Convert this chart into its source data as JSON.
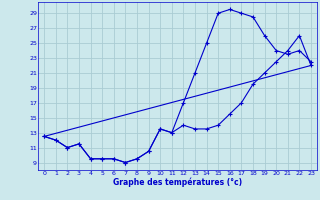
{
  "xlabel": "Graphe des températures (°c)",
  "bg_color": "#cce8ec",
  "grid_color": "#aaccd4",
  "line_color": "#0000cc",
  "xlim": [
    -0.5,
    23.5
  ],
  "ylim": [
    8.0,
    30.5
  ],
  "xticks": [
    0,
    1,
    2,
    3,
    4,
    5,
    6,
    7,
    8,
    9,
    10,
    11,
    12,
    13,
    14,
    15,
    16,
    17,
    18,
    19,
    20,
    21,
    22,
    23
  ],
  "yticks": [
    9,
    11,
    13,
    15,
    17,
    19,
    21,
    23,
    25,
    27,
    29
  ],
  "line1_x": [
    0,
    1,
    2,
    3,
    4,
    5,
    6,
    7,
    8,
    9,
    10,
    11,
    12,
    13,
    14,
    15,
    16,
    17,
    18,
    19,
    20,
    21,
    22,
    23
  ],
  "line1_y": [
    12.5,
    12.0,
    11.0,
    11.5,
    9.5,
    9.5,
    9.5,
    9.0,
    9.5,
    10.5,
    13.5,
    13.0,
    17.0,
    21.0,
    25.0,
    29.0,
    29.5,
    29.0,
    28.5,
    26.0,
    24.0,
    23.5,
    24.0,
    22.5
  ],
  "line2_x": [
    0,
    1,
    2,
    3,
    4,
    5,
    6,
    7,
    8,
    9,
    10,
    11,
    12,
    13,
    14,
    15,
    16,
    17,
    18,
    19,
    20,
    21,
    22,
    23
  ],
  "line2_y": [
    12.5,
    12.0,
    11.0,
    11.5,
    9.5,
    9.5,
    9.5,
    9.0,
    9.5,
    10.5,
    13.5,
    13.0,
    14.0,
    13.5,
    13.5,
    14.0,
    15.5,
    17.0,
    19.5,
    21.0,
    22.5,
    24.0,
    26.0,
    22.0
  ],
  "line3_x": [
    0,
    23
  ],
  "line3_y": [
    12.5,
    22.0
  ]
}
